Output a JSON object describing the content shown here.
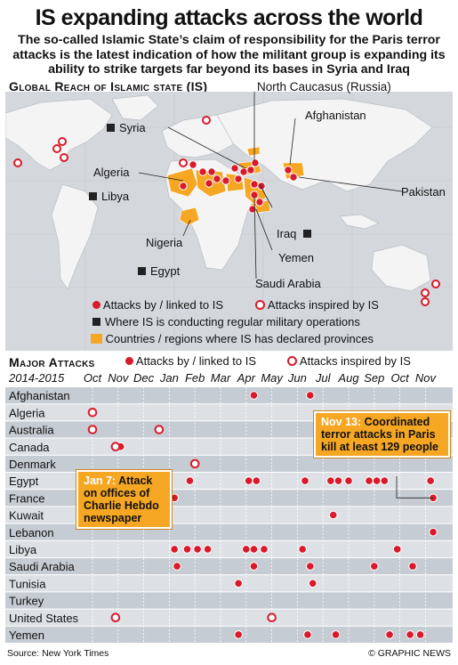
{
  "header": {
    "title": "IS expanding attacks across the world",
    "subtitle": "The so-called Islamic State’s claim of responsibility for the Paris terror attacks is the latest indication of how the militant group is expanding its ability to strike targets far beyond its bases in Syria and Iraq"
  },
  "map": {
    "heading": "Global Reach of Islamic state (IS)",
    "labels": {
      "north_caucasus": "North Caucasus (Russia)",
      "syria": "Syria",
      "afghanistan": "Afghanistan",
      "algeria": "Algeria",
      "libya": "Libya",
      "pakistan": "Pakistan",
      "nigeria": "Nigeria",
      "iraq": "Iraq",
      "yemen": "Yemen",
      "egypt": "Egypt",
      "saudi_arabia": "Saudi Arabia"
    },
    "legend": {
      "attacks_linked": "Attacks by / linked to IS",
      "attacks_inspired": "Attacks inspired by IS",
      "military_ops": "Where IS is conducting regular military operations",
      "provinces": "Countries / regions where IS has declared provinces"
    }
  },
  "attacks": {
    "heading": "Major Attacks",
    "period": "2014-2015",
    "legend_linked": "Attacks by / linked to IS",
    "legend_inspired": "Attacks inspired by IS",
    "callout_jan7_date": "Jan 7:",
    "callout_jan7_text": "Attack on offices of Charlie Hebdo newspaper",
    "callout_nov13_date": "Nov 13:",
    "callout_nov13_text": "Coordinated terror attacks in Paris kill at least 129 people"
  },
  "footer": {
    "source": "Source: New York Times",
    "credit": "© GRAPHIC NEWS"
  },
  "colors": {
    "red": "#d91a2a",
    "orange": "#f5a623",
    "row_dark": "#c6ccd3",
    "row_light": "#dde1e6",
    "ocean": "#d4d8dd",
    "land": "#f4f4f4"
  },
  "chart_data": {
    "type": "scatter",
    "months": [
      "Oct",
      "Nov",
      "Dec",
      "Jan",
      "Feb",
      "Mar",
      "Apr",
      "May",
      "Jun",
      "Jul",
      "Aug",
      "Sep",
      "Oct",
      "Nov"
    ],
    "countries": [
      "Afghanistan",
      "Algeria",
      "Australia",
      "Canada",
      "Denmark",
      "Egypt",
      "France",
      "Kuwait",
      "Lebanon",
      "Libya",
      "Saudi Arabia",
      "Tunisia",
      "Turkey",
      "United States",
      "Yemen"
    ],
    "series": [
      {
        "name": "Attacks by / linked to IS",
        "points": [
          [
            "Afghanistan",
            6.3
          ],
          [
            "Afghanistan",
            8.5
          ],
          [
            "Canada",
            1.1
          ],
          [
            "Egypt",
            3.8
          ],
          [
            "Egypt",
            6.1
          ],
          [
            "Egypt",
            6.4
          ],
          [
            "Egypt",
            8.3
          ],
          [
            "Egypt",
            9.3
          ],
          [
            "Egypt",
            9.6
          ],
          [
            "Egypt",
            10.0
          ],
          [
            "Egypt",
            10.8
          ],
          [
            "Egypt",
            11.1
          ],
          [
            "Egypt",
            11.4
          ],
          [
            "Egypt",
            13.2
          ],
          [
            "France",
            3.2
          ],
          [
            "France",
            13.3
          ],
          [
            "Kuwait",
            9.4
          ],
          [
            "Lebanon",
            13.3
          ],
          [
            "Libya",
            3.2
          ],
          [
            "Libya",
            3.7
          ],
          [
            "Libya",
            4.1
          ],
          [
            "Libya",
            4.5
          ],
          [
            "Libya",
            6.0
          ],
          [
            "Libya",
            6.3
          ],
          [
            "Libya",
            6.7
          ],
          [
            "Libya",
            8.2
          ],
          [
            "Libya",
            11.9
          ],
          [
            "Saudi Arabia",
            3.3
          ],
          [
            "Saudi Arabia",
            6.3
          ],
          [
            "Saudi Arabia",
            8.5
          ],
          [
            "Saudi Arabia",
            11.0
          ],
          [
            "Saudi Arabia",
            12.5
          ],
          [
            "Tunisia",
            5.7
          ],
          [
            "Tunisia",
            8.6
          ],
          [
            "Yemen",
            5.7
          ],
          [
            "Yemen",
            8.4
          ],
          [
            "Yemen",
            9.5
          ],
          [
            "Yemen",
            11.6
          ],
          [
            "Yemen",
            12.4
          ],
          [
            "Yemen",
            12.8
          ]
        ]
      },
      {
        "name": "Attacks inspired by IS",
        "points": [
          [
            "Algeria",
            0.0
          ],
          [
            "Australia",
            0.0
          ],
          [
            "Australia",
            2.6
          ],
          [
            "Canada",
            0.9
          ],
          [
            "Denmark",
            4.0
          ],
          [
            "United States",
            0.9
          ],
          [
            "United States",
            7.0
          ]
        ]
      }
    ]
  }
}
